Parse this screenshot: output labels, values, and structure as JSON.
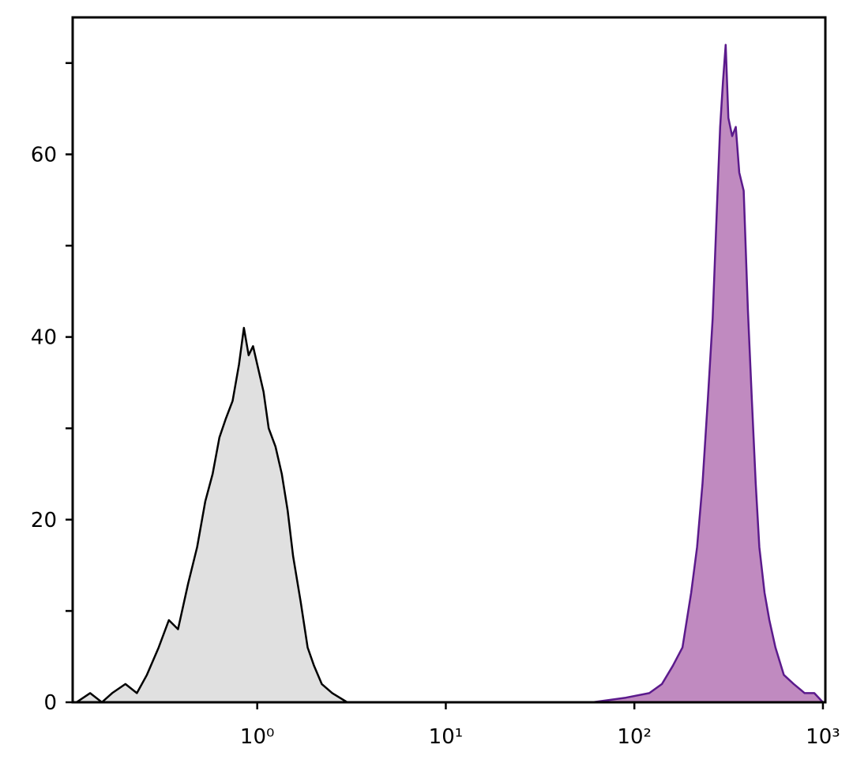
{
  "chart_data": {
    "type": "area",
    "xscale": "log",
    "xlim": [
      0.105,
      1030
    ],
    "ylim": [
      0,
      75
    ],
    "xticks": [
      {
        "value": 1,
        "label": "10⁰"
      },
      {
        "value": 10,
        "label": "10¹"
      },
      {
        "value": 100,
        "label": "10²"
      },
      {
        "value": 1000,
        "label": "10³"
      }
    ],
    "yticks": [
      0,
      20,
      40,
      60
    ],
    "yminorticks": [
      10,
      30,
      50,
      70
    ],
    "series": [
      {
        "color": "#000000",
        "fill": "#e0e0e0",
        "x": [
          0.11,
          0.13,
          0.15,
          0.17,
          0.2,
          0.23,
          0.26,
          0.3,
          0.34,
          0.38,
          0.43,
          0.48,
          0.53,
          0.58,
          0.63,
          0.68,
          0.74,
          0.8,
          0.85,
          0.9,
          0.95,
          1.0,
          1.08,
          1.15,
          1.25,
          1.35,
          1.45,
          1.55,
          1.7,
          1.85,
          2.0,
          2.2,
          2.5,
          3.0,
          4.0
        ],
        "values": [
          0,
          1,
          0,
          1,
          2,
          1,
          3,
          6,
          9,
          8,
          13,
          17,
          22,
          25,
          29,
          31,
          33,
          37,
          41,
          38,
          39,
          37,
          34,
          30,
          28,
          25,
          21,
          16,
          11,
          6,
          4,
          2,
          1,
          0,
          0
        ]
      },
      {
        "color": "#5b1a8c",
        "fill": "#c08ac0",
        "x": [
          60,
          90,
          120,
          140,
          160,
          180,
          200,
          215,
          230,
          245,
          260,
          275,
          285,
          295,
          305,
          315,
          330,
          345,
          360,
          380,
          400,
          420,
          440,
          460,
          490,
          520,
          560,
          620,
          700,
          800,
          900,
          1000
        ],
        "values": [
          0,
          0.5,
          1,
          2,
          4,
          6,
          12,
          17,
          24,
          33,
          42,
          55,
          63,
          68,
          72,
          64,
          62,
          63,
          58,
          56,
          43,
          33,
          24,
          17,
          12,
          9,
          6,
          3,
          2,
          1,
          1,
          0
        ]
      }
    ]
  }
}
